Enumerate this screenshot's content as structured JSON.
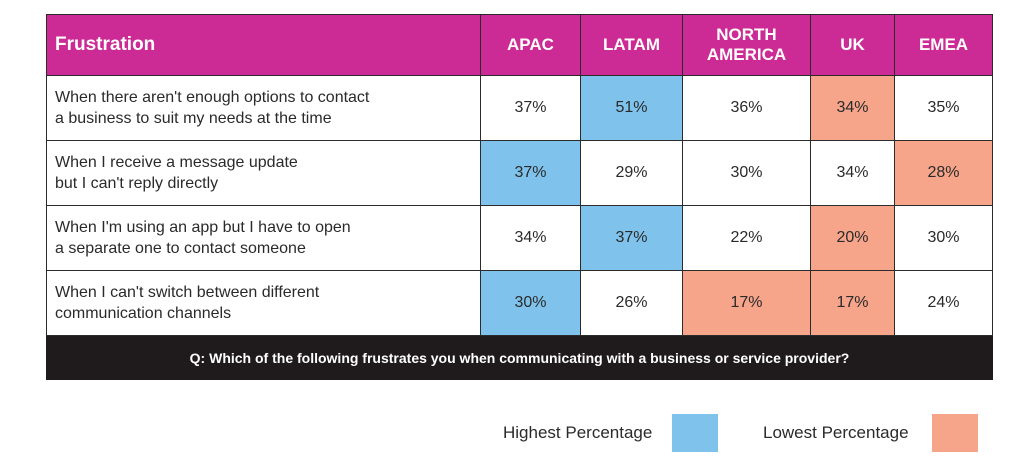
{
  "chart_data": {
    "type": "table",
    "header": {
      "first": "Frustration",
      "columns": [
        "APAC",
        "LATAM",
        "NORTH AMERICA",
        "UK",
        "EMEA"
      ]
    },
    "rows": [
      {
        "label": [
          "When there aren't enough options to contact",
          "a business to suit my needs at the time"
        ],
        "values": [
          "37%",
          "51%",
          "36%",
          "34%",
          "35%"
        ],
        "highlight": [
          "",
          "high",
          "",
          "low",
          ""
        ]
      },
      {
        "label": [
          "When I receive a message update",
          "but I can't reply directly"
        ],
        "values": [
          "37%",
          "29%",
          "30%",
          "34%",
          "28%"
        ],
        "highlight": [
          "high",
          "",
          "",
          "",
          "low"
        ]
      },
      {
        "label": [
          "When I'm using an app but I have to open",
          "a separate one to contact someone"
        ],
        "values": [
          "34%",
          "37%",
          "22%",
          "20%",
          "30%"
        ],
        "highlight": [
          "",
          "high",
          "",
          "low",
          ""
        ]
      },
      {
        "label": [
          "When I can't switch between different",
          "communication channels"
        ],
        "values": [
          "30%",
          "26%",
          "17%",
          "17%",
          "24%"
        ],
        "highlight": [
          "high",
          "",
          "low",
          "low",
          ""
        ]
      }
    ],
    "footer": "Q: Which of the following frustrates you when communicating with a business or service provider?",
    "legend": [
      {
        "label": "Highest Percentage",
        "color": "#7fc3ec"
      },
      {
        "label": "Lowest Percentage",
        "color": "#f6a58b"
      }
    ],
    "colors": {
      "header": "#cc2b95",
      "footer": "#1f1b1d",
      "high": "#7fc3ec",
      "low": "#f6a58b"
    }
  }
}
